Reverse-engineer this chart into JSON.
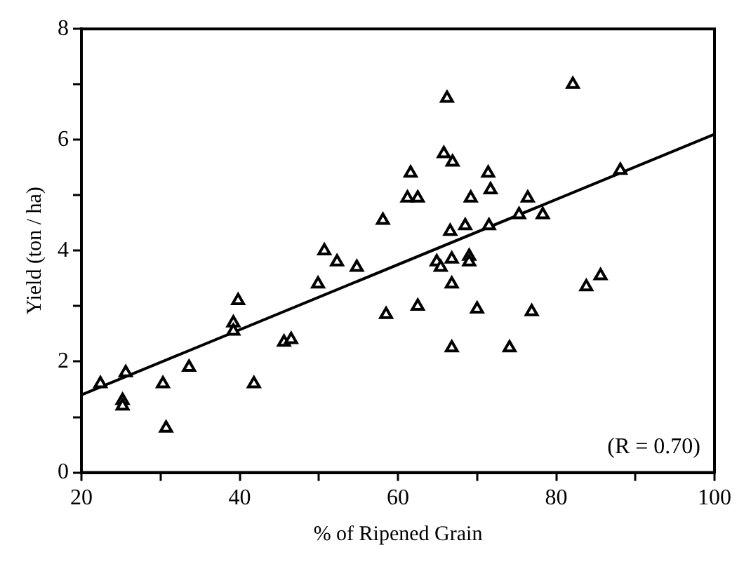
{
  "chart_data": {
    "type": "scatter",
    "xlabel": "% of Ripened Grain",
    "ylabel": "Yield (ton / ha)",
    "xlim": [
      20,
      100
    ],
    "ylim": [
      0,
      8
    ],
    "xticks": [
      20,
      {
        "value": 30,
        "label": null
      },
      40,
      {
        "value": 50,
        "label": null
      },
      60,
      {
        "value": 70,
        "label": null
      },
      80,
      {
        "value": 90,
        "label": null
      },
      100
    ],
    "yticks": [
      0,
      {
        "value": 1,
        "label": null
      },
      2,
      {
        "value": 3,
        "label": null
      },
      4,
      {
        "value": 5,
        "label": null
      },
      6,
      {
        "value": 7,
        "label": null
      },
      8
    ],
    "grid": false,
    "legend": false,
    "marker": "triangle",
    "annotations": [
      "(R = 0.70)"
    ],
    "series": [
      {
        "type": "scatter",
        "color": "#000000",
        "x": [
          22.4,
          25.6,
          25.2,
          25.2,
          30.3,
          30.7,
          33.6,
          39.2,
          39.2,
          39.8,
          41.8,
          45.6,
          46.5,
          49.9,
          50.7,
          52.3,
          54.8,
          58.1,
          58.5,
          61.2,
          62.5,
          61.6,
          62.5,
          64.9,
          65.4,
          66.2,
          65.8,
          66.9,
          66.6,
          66.8,
          66.8,
          66.8,
          68.5,
          69.0,
          69.0,
          69.2,
          70.0,
          71.4,
          71.7,
          71.5,
          74.1,
          75.3,
          76.4,
          76.9,
          78.3,
          82.1,
          83.8,
          85.6,
          88.1
        ],
        "values": [
          1.6,
          1.8,
          1.3,
          1.2,
          1.6,
          0.8,
          1.9,
          2.7,
          2.55,
          3.1,
          1.6,
          2.35,
          2.4,
          3.4,
          4.0,
          3.8,
          3.7,
          4.55,
          2.85,
          4.95,
          4.95,
          5.4,
          3.0,
          3.8,
          3.7,
          6.75,
          5.75,
          5.6,
          4.35,
          3.85,
          3.4,
          2.25,
          4.45,
          3.9,
          3.8,
          4.95,
          2.95,
          5.4,
          5.1,
          4.45,
          2.25,
          4.65,
          4.95,
          2.9,
          4.65,
          7.0,
          3.35,
          3.55,
          5.45
        ]
      },
      {
        "type": "line",
        "color": "#000000",
        "marker": "none",
        "line_style": "solid",
        "x": [
          20,
          100
        ],
        "values": [
          1.4,
          6.1
        ]
      }
    ]
  }
}
